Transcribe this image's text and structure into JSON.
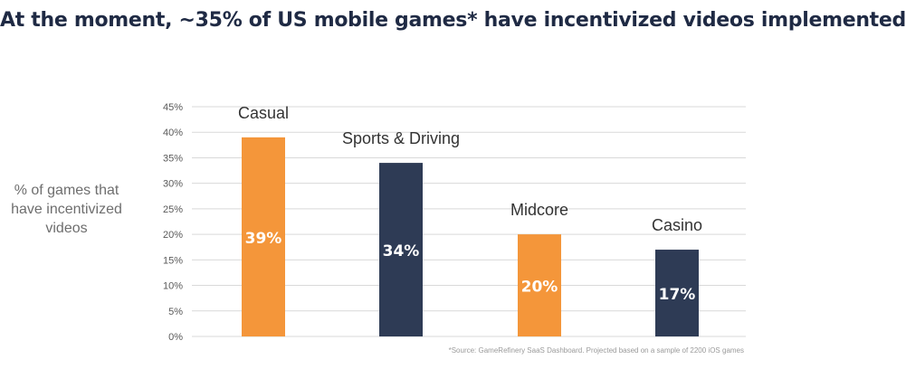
{
  "title": "At the moment, ~35% of US mobile games* have incentivized videos implemented",
  "ylabel_lines": [
    "% of games that",
    "have incentivized",
    "videos"
  ],
  "source": "*Source: GameRefinery SaaS Dashboard. Projected based on a sample of 2200 iOS games",
  "colors": {
    "orange": "#f4963a",
    "navy": "#2e3b55",
    "grid": "#d9d9d9",
    "tick": "#595959",
    "category": "#333333"
  },
  "chart_data": {
    "type": "bar",
    "categories": [
      "Casual",
      "Sports & Driving",
      "Midcore",
      "Casino"
    ],
    "values": [
      39,
      34,
      20,
      17
    ],
    "data_labels": [
      "39%",
      "34%",
      "20%",
      "17%"
    ],
    "bar_colors": [
      "#f4963a",
      "#2e3b55",
      "#f4963a",
      "#2e3b55"
    ],
    "yticks": [
      "0%",
      "5%",
      "10%",
      "15%",
      "20%",
      "25%",
      "30%",
      "35%",
      "40%",
      "45%"
    ],
    "ylim": [
      0,
      45
    ],
    "ylabel": "% of games that have incentivized videos",
    "grid": true,
    "legend": "none"
  }
}
